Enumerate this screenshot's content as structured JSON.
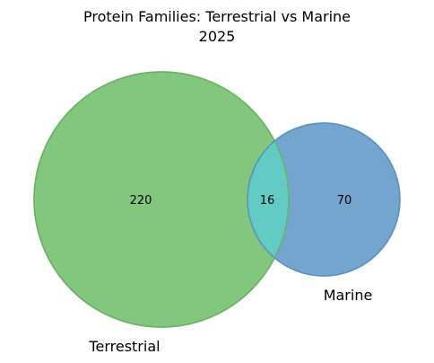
{
  "title_line1": "Protein Families: Terrestrial vs Marine",
  "title_line2": "2025",
  "sets": [
    {
      "name": "Terrestrial",
      "only_count": "220",
      "color": "#83c67d"
    },
    {
      "name": "Marine",
      "only_count": "70",
      "color": "#73a5cf"
    }
  ],
  "intersection": {
    "count": "16",
    "color": "#62cbc4"
  },
  "colors": {
    "terrestrial_edge": "#6ab264",
    "marine_edge": "#5a92c0"
  }
}
